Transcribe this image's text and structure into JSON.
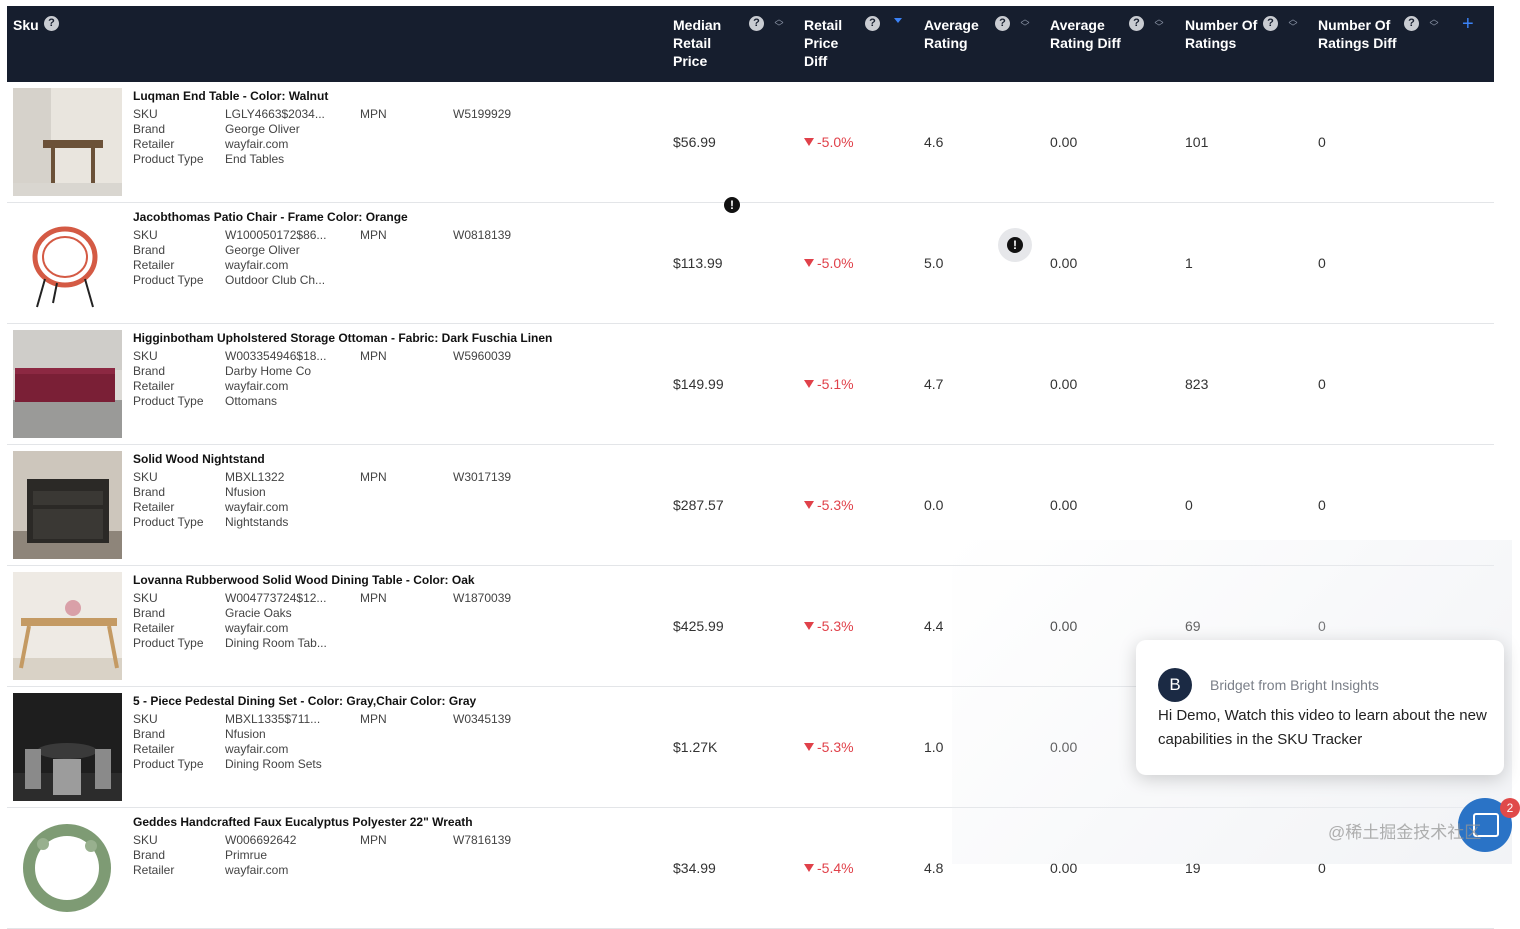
{
  "header": {
    "sku": "Sku",
    "median_retail_price": "Median Retail Price",
    "retail_price_diff": "Retail Price Diff",
    "average_rating": "Average Rating",
    "average_rating_diff": "Average Rating Diff",
    "number_of_ratings": "Number Of Ratings",
    "number_of_ratings_diff": "Number Of Ratings Diff",
    "help_glyph": "?",
    "add_column_glyph": "+"
  },
  "labels": {
    "sku": "SKU",
    "brand": "Brand",
    "retailer": "Retailer",
    "product_type": "Product Type",
    "mpn": "MPN"
  },
  "rows": [
    {
      "name": "Luqman End Table - Color: Walnut",
      "sku": "LGLY4663$2034...",
      "brand": "George Oliver",
      "retailer": "wayfair.com",
      "type": "End Tables",
      "mpn": "W5199929",
      "price": "$56.99",
      "price_diff": "-5.0%",
      "rating": "4.6",
      "rating_diff": "0.00",
      "num_ratings": "101",
      "num_ratings_diff": "0"
    },
    {
      "name": "Jacobthomas Patio Chair - Frame Color: Orange",
      "sku": "W100050172$86...",
      "brand": "George Oliver",
      "retailer": "wayfair.com",
      "type": "Outdoor Club Ch...",
      "mpn": "W0818139",
      "price": "$113.99",
      "price_diff": "-5.0%",
      "rating": "5.0",
      "rating_diff": "0.00",
      "num_ratings": "1",
      "num_ratings_diff": "0"
    },
    {
      "name": "Higginbotham Upholstered Storage Ottoman - Fabric: Dark Fuschia Linen",
      "sku": "W003354946$18...",
      "brand": "Darby Home Co",
      "retailer": "wayfair.com",
      "type": "Ottomans",
      "mpn": "W5960039",
      "price": "$149.99",
      "price_diff": "-5.1%",
      "rating": "4.7",
      "rating_diff": "0.00",
      "num_ratings": "823",
      "num_ratings_diff": "0"
    },
    {
      "name": "Solid Wood Nightstand",
      "sku": "MBXL1322",
      "brand": "Nfusion",
      "retailer": "wayfair.com",
      "type": "Nightstands",
      "mpn": "W3017139",
      "price": "$287.57",
      "price_diff": "-5.3%",
      "rating": "0.0",
      "rating_diff": "0.00",
      "num_ratings": "0",
      "num_ratings_diff": "0"
    },
    {
      "name": "Lovanna Rubberwood Solid Wood Dining Table - Color: Oak",
      "sku": "W004773724$12...",
      "brand": "Gracie Oaks",
      "retailer": "wayfair.com",
      "type": "Dining Room Tab...",
      "mpn": "W1870039",
      "price": "$425.99",
      "price_diff": "-5.3%",
      "rating": "4.4",
      "rating_diff": "0.00",
      "num_ratings": "69",
      "num_ratings_diff": "0"
    },
    {
      "name": "5 - Piece Pedestal Dining Set - Color: Gray,Chair Color: Gray",
      "sku": "MBXL1335$711...",
      "brand": "Nfusion",
      "retailer": "wayfair.com",
      "type": "Dining Room Sets",
      "mpn": "W0345139",
      "price": "$1.27K",
      "price_diff": "-5.3%",
      "rating": "1.0",
      "rating_diff": "0.00",
      "num_ratings": "",
      "num_ratings_diff": ""
    },
    {
      "name": "Geddes Handcrafted Faux Eucalyptus Polyester 22\" Wreath",
      "sku": "W006692642",
      "brand": "Primrue",
      "retailer": "wayfair.com",
      "type": "",
      "mpn": "W7816139",
      "price": "$34.99",
      "price_diff": "-5.4%",
      "rating": "4.8",
      "rating_diff": "0.00",
      "num_ratings": "19",
      "num_ratings_diff": "0"
    }
  ],
  "warnings": {
    "glyph": "!"
  },
  "chat": {
    "avatar_letter": "B",
    "from": "Bridget from Bright Insights",
    "message": "Hi Demo, Watch this video to learn about the new capabilities in the SKU Tracker",
    "badge": "2"
  },
  "watermark": "@稀土掘金技术社区",
  "colors": {
    "header_bg": "#161e2e",
    "negative": "#e0414a",
    "accent": "#3b82f6",
    "chat_launcher": "#2a73c6"
  }
}
